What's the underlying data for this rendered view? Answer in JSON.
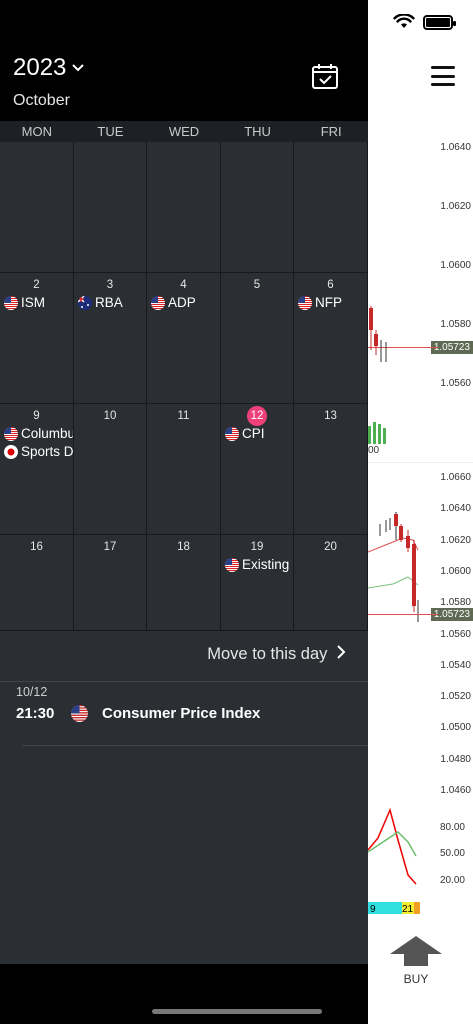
{
  "drawer": {
    "year": "2023",
    "month": "October",
    "weekdays": [
      "MON",
      "TUE",
      "WED",
      "THU",
      "FRI"
    ],
    "days": [
      {
        "day": ""
      },
      {
        "day": ""
      },
      {
        "day": ""
      },
      {
        "day": ""
      },
      {
        "day": ""
      },
      {
        "day": "2",
        "events": [
          {
            "flag": "us",
            "name": "ISM"
          }
        ]
      },
      {
        "day": "3",
        "events": [
          {
            "flag": "au",
            "name": "RBA"
          }
        ]
      },
      {
        "day": "4",
        "events": [
          {
            "flag": "us",
            "name": "ADP"
          }
        ]
      },
      {
        "day": "5"
      },
      {
        "day": "6",
        "events": [
          {
            "flag": "us",
            "name": "NFP"
          }
        ]
      },
      {
        "day": "9",
        "events": [
          {
            "flag": "us",
            "name": "Columbus Day"
          },
          {
            "flag": "jp",
            "name": "Sports Day"
          }
        ]
      },
      {
        "day": "10"
      },
      {
        "day": "11"
      },
      {
        "day": "12",
        "selected": true,
        "events": [
          {
            "flag": "us",
            "name": "CPI"
          }
        ]
      },
      {
        "day": "13"
      },
      {
        "day": "16"
      },
      {
        "day": "17"
      },
      {
        "day": "18"
      },
      {
        "day": "19",
        "events": [
          {
            "flag": "us",
            "name": "Existing Home Sales"
          }
        ]
      },
      {
        "day": "20"
      }
    ],
    "move_label": "Move to this day",
    "selected_event": {
      "date": "10/12",
      "time": "21:30",
      "flag": "us",
      "name": "Consumer Price Index"
    }
  },
  "chart": {
    "price_labels_top": [
      "1.0640",
      "1.0620",
      "1.0600",
      "1.0580",
      "1.0560"
    ],
    "current_price": "1.05723",
    "volume_label": "00",
    "price_labels_mid": [
      "1.0660",
      "1.0640",
      "1.0620",
      "1.0600",
      "1.0580",
      "1.0560",
      "1.0540",
      "1.0520",
      "1.0500",
      "1.0480",
      "1.0460"
    ],
    "osc_labels": [
      "80.00",
      "50.00",
      "20.00"
    ],
    "strip_labels": [
      "9",
      "21"
    ],
    "buy_label": "BUY",
    "colors": {
      "up": "#2e7d32",
      "down": "#c62828",
      "current": "#5f6a55"
    }
  }
}
